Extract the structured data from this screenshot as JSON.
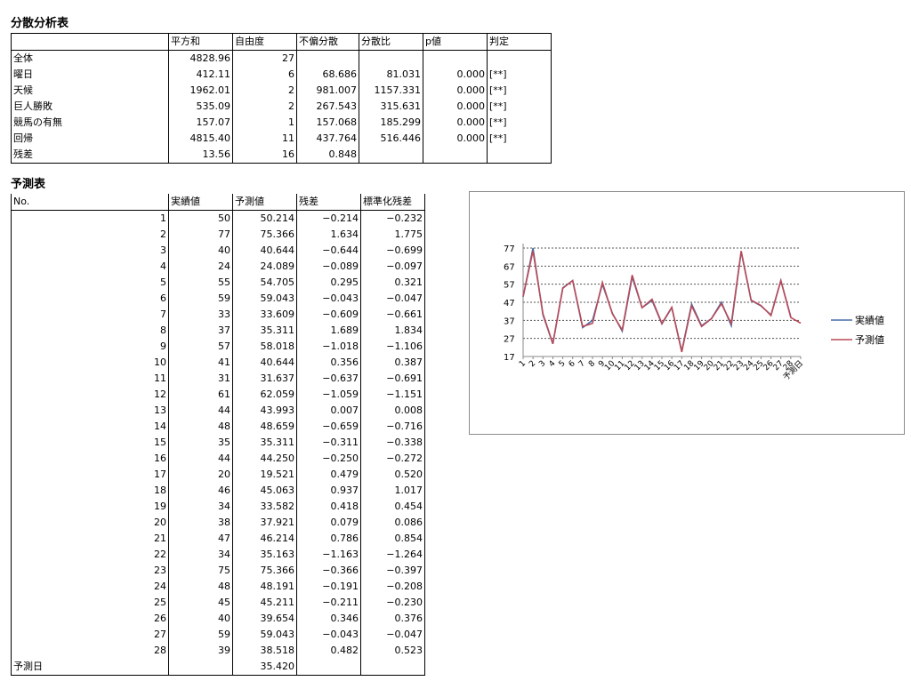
{
  "anova": {
    "title": "分散分析表",
    "headers": [
      "",
      "平方和",
      "自由度",
      "不偏分散",
      "分散比",
      "p値",
      "判定"
    ],
    "rows": [
      [
        "全体",
        "4828.96",
        "27",
        "",
        "",
        "",
        ""
      ],
      [
        "曜日",
        "412.11",
        "6",
        "68.686",
        "81.031",
        "0.000",
        "[**]"
      ],
      [
        "天候",
        "1962.01",
        "2",
        "981.007",
        "1157.331",
        "0.000",
        "[**]"
      ],
      [
        "巨人勝敗",
        "535.09",
        "2",
        "267.543",
        "315.631",
        "0.000",
        "[**]"
      ],
      [
        "競馬の有無",
        "157.07",
        "1",
        "157.068",
        "185.299",
        "0.000",
        "[**]"
      ],
      [
        "回帰",
        "4815.40",
        "11",
        "437.764",
        "516.446",
        "0.000",
        "[**]"
      ],
      [
        "残差",
        "13.56",
        "16",
        "0.848",
        "",
        "",
        ""
      ]
    ]
  },
  "prediction": {
    "title": "予測表",
    "headers": [
      "No.",
      "実績値",
      "予測値",
      "残差",
      "標準化残差"
    ],
    "rows": [
      [
        "1",
        "50",
        "50.214",
        "−0.214",
        "−0.232"
      ],
      [
        "2",
        "77",
        "75.366",
        "1.634",
        "1.775"
      ],
      [
        "3",
        "40",
        "40.644",
        "−0.644",
        "−0.699"
      ],
      [
        "4",
        "24",
        "24.089",
        "−0.089",
        "−0.097"
      ],
      [
        "5",
        "55",
        "54.705",
        "0.295",
        "0.321"
      ],
      [
        "6",
        "59",
        "59.043",
        "−0.043",
        "−0.047"
      ],
      [
        "7",
        "33",
        "33.609",
        "−0.609",
        "−0.661"
      ],
      [
        "8",
        "37",
        "35.311",
        "1.689",
        "1.834"
      ],
      [
        "9",
        "57",
        "58.018",
        "−1.018",
        "−1.106"
      ],
      [
        "10",
        "41",
        "40.644",
        "0.356",
        "0.387"
      ],
      [
        "11",
        "31",
        "31.637",
        "−0.637",
        "−0.691"
      ],
      [
        "12",
        "61",
        "62.059",
        "−1.059",
        "−1.151"
      ],
      [
        "13",
        "44",
        "43.993",
        "0.007",
        "0.008"
      ],
      [
        "14",
        "48",
        "48.659",
        "−0.659",
        "−0.716"
      ],
      [
        "15",
        "35",
        "35.311",
        "−0.311",
        "−0.338"
      ],
      [
        "16",
        "44",
        "44.250",
        "−0.250",
        "−0.272"
      ],
      [
        "17",
        "20",
        "19.521",
        "0.479",
        "0.520"
      ],
      [
        "18",
        "46",
        "45.063",
        "0.937",
        "1.017"
      ],
      [
        "19",
        "34",
        "33.582",
        "0.418",
        "0.454"
      ],
      [
        "20",
        "38",
        "37.921",
        "0.079",
        "0.086"
      ],
      [
        "21",
        "47",
        "46.214",
        "0.786",
        "0.854"
      ],
      [
        "22",
        "34",
        "35.163",
        "−1.163",
        "−1.264"
      ],
      [
        "23",
        "75",
        "75.366",
        "−0.366",
        "−0.397"
      ],
      [
        "24",
        "48",
        "48.191",
        "−0.191",
        "−0.208"
      ],
      [
        "25",
        "45",
        "45.211",
        "−0.211",
        "−0.230"
      ],
      [
        "26",
        "40",
        "39.654",
        "0.346",
        "0.376"
      ],
      [
        "27",
        "59",
        "59.043",
        "−0.043",
        "−0.047"
      ],
      [
        "28",
        "39",
        "38.518",
        "0.482",
        "0.523"
      ],
      [
        "予測日",
        "",
        "35.420",
        "",
        ""
      ]
    ]
  },
  "chart_data": {
    "type": "line",
    "title": "",
    "xlabel": "",
    "ylabel": "",
    "x": [
      "1",
      "2",
      "3",
      "4",
      "5",
      "6",
      "7",
      "8",
      "9",
      "10",
      "11",
      "12",
      "13",
      "14",
      "15",
      "16",
      "17",
      "18",
      "19",
      "20",
      "21",
      "22",
      "23",
      "24",
      "25",
      "26",
      "27",
      "28",
      "予測日"
    ],
    "yticks": [
      17,
      27,
      37,
      47,
      57,
      67,
      77
    ],
    "ylim": [
      17,
      77
    ],
    "grid": true,
    "legend_position": "right",
    "series": [
      {
        "name": "実績値",
        "color": "#4a6fa5",
        "values": [
          50,
          77,
          40,
          24,
          55,
          59,
          33,
          37,
          57,
          41,
          31,
          61,
          44,
          48,
          35,
          44,
          20,
          46,
          34,
          38,
          47,
          34,
          75,
          48,
          45,
          40,
          59,
          39,
          null
        ]
      },
      {
        "name": "予測値",
        "color": "#b94a59",
        "values": [
          50.214,
          75.366,
          40.644,
          24.089,
          54.705,
          59.043,
          33.609,
          35.311,
          58.018,
          40.644,
          31.637,
          62.059,
          43.993,
          48.659,
          35.311,
          44.25,
          19.521,
          45.063,
          33.582,
          37.921,
          46.214,
          35.163,
          75.366,
          48.191,
          45.211,
          39.654,
          59.043,
          38.518,
          35.42
        ]
      }
    ]
  }
}
